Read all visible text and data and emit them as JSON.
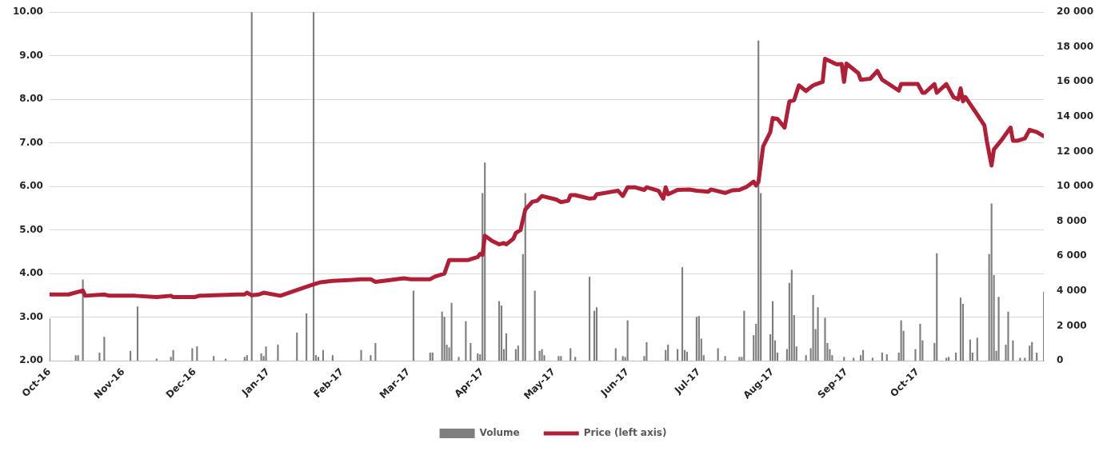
{
  "chart_data": {
    "type": "line",
    "xlim": [
      "2016-10-01",
      "2017-11-23"
    ],
    "xticks": [
      {
        "value": "2016-10-01",
        "label": "Oct-16"
      },
      {
        "value": "2016-11-01",
        "label": "Nov-16"
      },
      {
        "value": "2016-12-01",
        "label": "Dec-16"
      },
      {
        "value": "2017-01-01",
        "label": "Jan-17"
      },
      {
        "value": "2017-02-01",
        "label": "Feb-17"
      },
      {
        "value": "2017-03-01",
        "label": "Mar-17"
      },
      {
        "value": "2017-04-01",
        "label": "Apr-17"
      },
      {
        "value": "2017-05-01",
        "label": "May-17"
      },
      {
        "value": "2017-06-01",
        "label": "Jun-17"
      },
      {
        "value": "2017-07-01",
        "label": "Jul-17"
      },
      {
        "value": "2017-08-01",
        "label": "Aug-17"
      },
      {
        "value": "2017-09-01",
        "label": "Sep-17"
      },
      {
        "value": "2017-10-01",
        "label": "Oct-17"
      }
    ],
    "ylim": [
      2,
      10
    ],
    "yticks": [
      {
        "value": 2,
        "label": "2.00"
      },
      {
        "value": 3,
        "label": "3.00"
      },
      {
        "value": 4,
        "label": "4.00"
      },
      {
        "value": 5,
        "label": "5.00"
      },
      {
        "value": 6,
        "label": "6.00"
      },
      {
        "value": 7,
        "label": "7.00"
      },
      {
        "value": 8,
        "label": "8.00"
      },
      {
        "value": 9,
        "label": "9.00"
      },
      {
        "value": 10,
        "label": "10.00"
      }
    ],
    "y2lim": [
      0,
      20000
    ],
    "y2ticks": [
      {
        "value": 0,
        "label": "0"
      },
      {
        "value": 2000,
        "label": "2 000"
      },
      {
        "value": 4000,
        "label": "4 000"
      },
      {
        "value": 6000,
        "label": "6 000"
      },
      {
        "value": 8000,
        "label": "8 000"
      },
      {
        "value": 10000,
        "label": "10 000"
      },
      {
        "value": 12000,
        "label": "12 000"
      },
      {
        "value": 14000,
        "label": "14 000"
      },
      {
        "value": 16000,
        "label": "16 000"
      },
      {
        "value": 18000,
        "label": "18 000"
      },
      {
        "value": 20000,
        "label": "20 000"
      }
    ],
    "grid": "y",
    "legend": "bottom",
    "series": [
      {
        "name": "Volume",
        "type": "bar",
        "axis": "y2",
        "color": "#7f7f7f",
        "x": [
          "2016-10-01",
          "2016-10-12",
          "2016-10-13",
          "2016-10-15",
          "2016-10-22",
          "2016-10-24",
          "2016-11-04",
          "2016-11-07",
          "2016-11-15",
          "2016-11-21",
          "2016-11-22",
          "2016-11-30",
          "2016-12-02",
          "2016-12-09",
          "2016-12-14",
          "2016-12-22",
          "2016-12-23",
          "2016-12-25",
          "2016-12-29",
          "2016-12-30",
          "2016-12-31",
          "2017-01-05",
          "2017-01-13",
          "2017-01-17",
          "2017-01-20",
          "2017-01-21",
          "2017-01-22",
          "2017-01-24",
          "2017-01-28",
          "2017-02-09",
          "2017-02-13",
          "2017-02-15",
          "2017-03-03",
          "2017-03-10",
          "2017-03-11",
          "2017-03-15",
          "2017-03-16",
          "2017-03-17",
          "2017-03-18",
          "2017-03-19",
          "2017-03-22",
          "2017-03-25",
          "2017-03-27",
          "2017-03-30",
          "2017-03-31",
          "2017-04-01",
          "2017-04-02",
          "2017-04-08",
          "2017-04-09",
          "2017-04-10",
          "2017-04-11",
          "2017-04-15",
          "2017-04-16",
          "2017-04-18",
          "2017-04-19",
          "2017-04-23",
          "2017-04-25",
          "2017-04-26",
          "2017-04-27",
          "2017-05-03",
          "2017-05-04",
          "2017-05-08",
          "2017-05-10",
          "2017-05-16",
          "2017-05-18",
          "2017-05-19",
          "2017-05-27",
          "2017-05-30",
          "2017-05-31",
          "2017-06-01",
          "2017-06-08",
          "2017-06-09",
          "2017-06-17",
          "2017-06-18",
          "2017-06-22",
          "2017-06-24",
          "2017-06-25",
          "2017-06-26",
          "2017-06-30",
          "2017-07-01",
          "2017-07-02",
          "2017-07-03",
          "2017-07-09",
          "2017-07-12",
          "2017-07-18",
          "2017-07-19",
          "2017-07-20",
          "2017-07-24",
          "2017-07-25",
          "2017-07-26",
          "2017-07-27",
          "2017-07-31",
          "2017-08-01",
          "2017-08-02",
          "2017-08-03",
          "2017-08-07",
          "2017-08-08",
          "2017-08-09",
          "2017-08-10",
          "2017-08-11",
          "2017-08-15",
          "2017-08-17",
          "2017-08-18",
          "2017-08-19",
          "2017-08-20",
          "2017-08-23",
          "2017-08-24",
          "2017-08-25",
          "2017-08-26",
          "2017-08-31",
          "2017-09-04",
          "2017-09-07",
          "2017-09-08",
          "2017-09-12",
          "2017-09-16",
          "2017-09-18",
          "2017-09-23",
          "2017-09-24",
          "2017-09-25",
          "2017-09-30",
          "2017-10-02",
          "2017-10-03",
          "2017-10-08",
          "2017-10-09",
          "2017-10-13",
          "2017-10-14",
          "2017-10-17",
          "2017-10-19",
          "2017-10-20",
          "2017-10-23",
          "2017-10-24",
          "2017-10-26",
          "2017-10-31",
          "2017-11-01",
          "2017-11-02",
          "2017-11-03",
          "2017-11-04",
          "2017-11-07",
          "2017-11-08",
          "2017-11-10",
          "2017-11-13",
          "2017-11-15",
          "2017-11-17",
          "2017-11-18",
          "2017-11-20",
          "2017-11-23"
        ],
        "values": [
          2400,
          300,
          300,
          4650,
          450,
          1350,
          550,
          3100,
          100,
          200,
          600,
          700,
          800,
          250,
          100,
          200,
          300,
          20000,
          400,
          250,
          800,
          900,
          1600,
          2700,
          20000,
          300,
          200,
          600,
          300,
          600,
          300,
          1000,
          4000,
          450,
          450,
          2800,
          2500,
          900,
          750,
          3300,
          200,
          2250,
          1000,
          400,
          350,
          9600,
          11350,
          3400,
          3150,
          650,
          1550,
          650,
          850,
          6100,
          9600,
          4000,
          550,
          650,
          300,
          250,
          250,
          700,
          200,
          4800,
          2850,
          3050,
          700,
          250,
          200,
          2300,
          250,
          1050,
          600,
          900,
          650,
          5350,
          600,
          500,
          2500,
          2550,
          1250,
          300,
          700,
          250,
          200,
          200,
          2850,
          1450,
          2100,
          18350,
          9600,
          1500,
          3400,
          1150,
          450,
          650,
          4450,
          5200,
          2600,
          800,
          300,
          700,
          3750,
          1800,
          3050,
          2450,
          1000,
          650,
          300,
          200,
          150,
          300,
          600,
          150,
          450,
          350,
          450,
          2300,
          1700,
          650,
          2100,
          1150,
          1000,
          6150,
          150,
          200,
          450,
          3600,
          3250,
          1200,
          450,
          1300,
          6100,
          9000,
          4900,
          550,
          3650,
          900,
          2800,
          1150,
          150,
          150,
          850,
          1050,
          450,
          3950
        ]
      },
      {
        "name": "Price (left axis)",
        "color": "#b01f36",
        "x": [
          "2016-10-01",
          "2016-10-09",
          "2016-10-15",
          "2016-10-16",
          "2016-10-24",
          "2016-10-26",
          "2016-11-06",
          "2016-11-15",
          "2016-11-21",
          "2016-11-22",
          "2016-12-01",
          "2016-12-03",
          "2016-12-19",
          "2016-12-22",
          "2016-12-23",
          "2016-12-25",
          "2016-12-28",
          "2016-12-30",
          "2017-01-06",
          "2017-01-16",
          "2017-01-20",
          "2017-01-23",
          "2017-01-28",
          "2017-02-04",
          "2017-02-09",
          "2017-02-13",
          "2017-02-15",
          "2017-02-27",
          "2017-03-02",
          "2017-03-10",
          "2017-03-12",
          "2017-03-16",
          "2017-03-18",
          "2017-03-26",
          "2017-03-30",
          "2017-03-31",
          "2017-04-01",
          "2017-04-02",
          "2017-04-05",
          "2017-04-08",
          "2017-04-10",
          "2017-04-11",
          "2017-04-14",
          "2017-04-15",
          "2017-04-17",
          "2017-04-19",
          "2017-04-22",
          "2017-04-24",
          "2017-04-26",
          "2017-05-02",
          "2017-05-04",
          "2017-05-07",
          "2017-05-08",
          "2017-05-10",
          "2017-05-16",
          "2017-05-18",
          "2017-05-19",
          "2017-05-28",
          "2017-05-30",
          "2017-06-01",
          "2017-06-04",
          "2017-06-08",
          "2017-06-09",
          "2017-06-14",
          "2017-06-16",
          "2017-06-17",
          "2017-06-18",
          "2017-06-22",
          "2017-06-27",
          "2017-06-30",
          "2017-07-05",
          "2017-07-06",
          "2017-07-12",
          "2017-07-15",
          "2017-07-18",
          "2017-07-21",
          "2017-07-24",
          "2017-07-25",
          "2017-07-26",
          "2017-07-28",
          "2017-07-31",
          "2017-08-01",
          "2017-08-03",
          "2017-08-06",
          "2017-08-08",
          "2017-08-10",
          "2017-08-12",
          "2017-08-15",
          "2017-08-18",
          "2017-08-22",
          "2017-08-23",
          "2017-08-26",
          "2017-08-28",
          "2017-08-30",
          "2017-08-31",
          "2017-09-01",
          "2017-09-06",
          "2017-09-07",
          "2017-09-11",
          "2017-09-14",
          "2017-09-16",
          "2017-09-23",
          "2017-09-24",
          "2017-10-01",
          "2017-10-03",
          "2017-10-04",
          "2017-10-08",
          "2017-10-09",
          "2017-10-13",
          "2017-10-16",
          "2017-10-18",
          "2017-10-19",
          "2017-10-20",
          "2017-10-21",
          "2017-10-26",
          "2017-10-29",
          "2017-10-30",
          "2017-11-01",
          "2017-11-02",
          "2017-11-05",
          "2017-11-09",
          "2017-11-10",
          "2017-11-12",
          "2017-11-15",
          "2017-11-17",
          "2017-11-20",
          "2017-11-23"
        ],
        "values": [
          3.52,
          3.52,
          3.61,
          3.49,
          3.52,
          3.49,
          3.49,
          3.46,
          3.49,
          3.46,
          3.46,
          3.49,
          3.52,
          3.52,
          3.56,
          3.5,
          3.52,
          3.56,
          3.49,
          3.68,
          3.75,
          3.8,
          3.83,
          3.85,
          3.87,
          3.87,
          3.81,
          3.89,
          3.87,
          3.87,
          3.93,
          4.0,
          4.31,
          4.31,
          4.38,
          4.45,
          4.43,
          4.87,
          4.75,
          4.67,
          4.7,
          4.67,
          4.8,
          4.93,
          5.0,
          5.47,
          5.65,
          5.67,
          5.78,
          5.7,
          5.64,
          5.67,
          5.8,
          5.8,
          5.72,
          5.73,
          5.82,
          5.9,
          5.78,
          5.98,
          5.98,
          5.92,
          5.98,
          5.9,
          5.72,
          5.98,
          5.82,
          5.92,
          5.93,
          5.9,
          5.88,
          5.93,
          5.85,
          5.91,
          5.92,
          5.99,
          6.11,
          6.02,
          6.1,
          6.92,
          7.25,
          7.57,
          7.55,
          7.35,
          7.95,
          7.98,
          8.32,
          8.19,
          8.32,
          8.4,
          8.93,
          8.85,
          8.8,
          8.81,
          8.4,
          8.82,
          8.6,
          8.45,
          8.47,
          8.65,
          8.45,
          8.2,
          8.35,
          8.35,
          8.15,
          8.15,
          8.35,
          8.15,
          8.35,
          8.05,
          8.0,
          8.25,
          7.95,
          8.05,
          7.65,
          7.4,
          7.05,
          6.48,
          6.85,
          7.05,
          7.35,
          7.05,
          7.05,
          7.1,
          7.3,
          7.25,
          7.15
        ]
      }
    ]
  }
}
